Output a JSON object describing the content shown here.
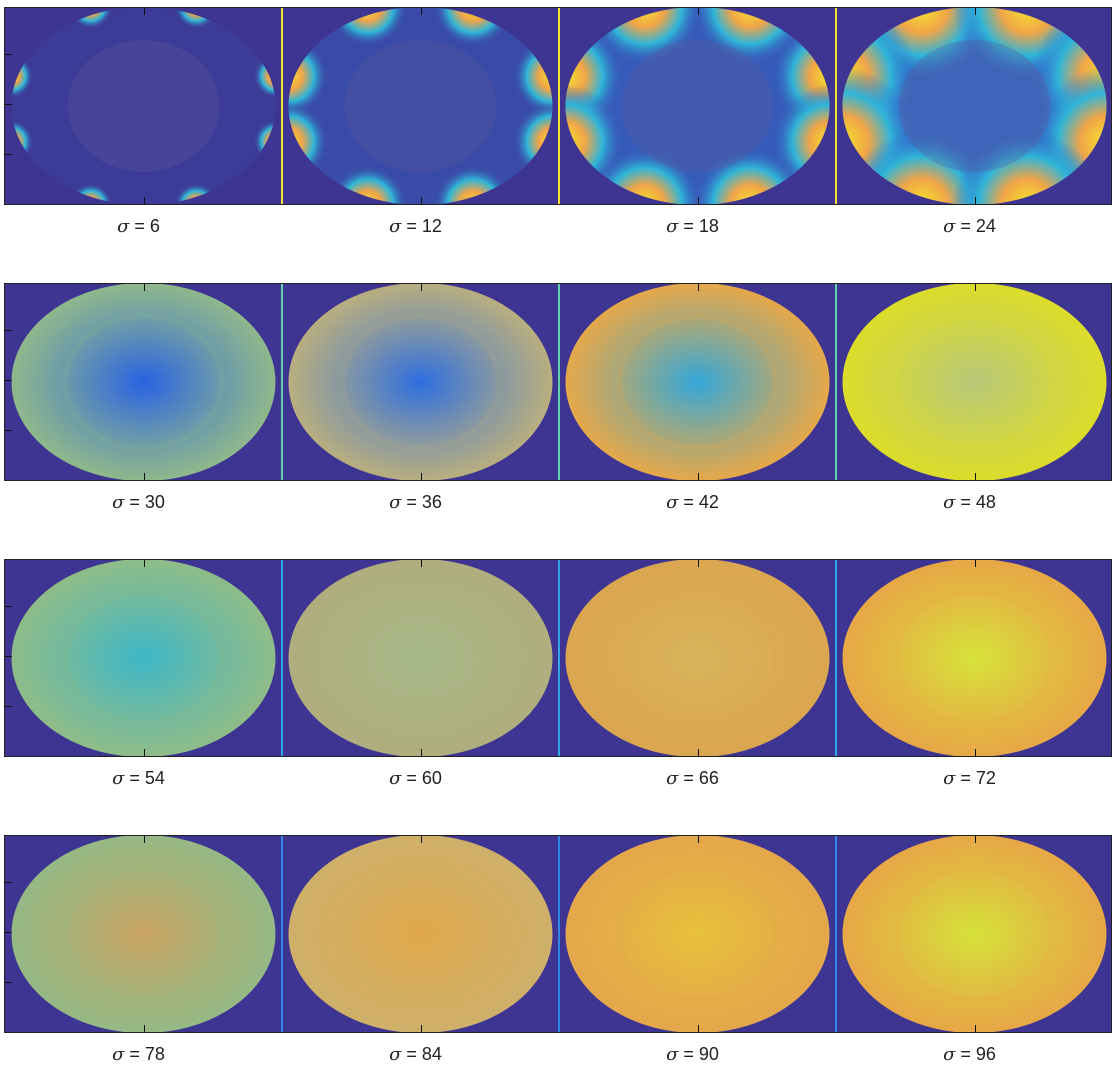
{
  "figure": {
    "symbol": "σ",
    "rows": [
      {
        "separator_color": "#f5e52b",
        "panels": [
          {
            "sigma": "6",
            "blob_radius": 10,
            "intensity": 1.0,
            "base": 0.05,
            "map": "blobs"
          },
          {
            "sigma": "12",
            "blob_radius": 18,
            "intensity": 1.0,
            "base": 0.18,
            "map": "blobs"
          },
          {
            "sigma": "18",
            "blob_radius": 26,
            "intensity": 1.0,
            "base": 0.32,
            "map": "blobs"
          },
          {
            "sigma": "24",
            "blob_radius": 34,
            "intensity": 1.0,
            "base": 0.45,
            "map": "blobs"
          }
        ]
      },
      {
        "separator_color": "#5fd0a8",
        "panels": [
          {
            "sigma": "30",
            "center": "#2a63e3",
            "edge": "#8fb88b",
            "map": "radial"
          },
          {
            "sigma": "36",
            "center": "#2e6fe0",
            "edge": "#b9ae7f",
            "map": "radial"
          },
          {
            "sigma": "42",
            "center": "#33a7d9",
            "edge": "#e6a84a",
            "map": "radial"
          },
          {
            "sigma": "48",
            "center": "#b8c87a",
            "edge": "#dcdc2a",
            "map": "radial"
          }
        ]
      },
      {
        "separator_color": "#2fa7e6",
        "panels": [
          {
            "sigma": "54",
            "center": "#3cb7c8",
            "edge": "#8fbc88",
            "map": "radial"
          },
          {
            "sigma": "60",
            "center": "#a7b988",
            "edge": "#b0ad7e",
            "map": "radial"
          },
          {
            "sigma": "66",
            "center": "#d8b45a",
            "edge": "#dba650",
            "map": "radial"
          },
          {
            "sigma": "72",
            "center": "#d7e33a",
            "edge": "#e7a746",
            "map": "radial"
          }
        ]
      },
      {
        "separator_color": "#2f86e6",
        "panels": [
          {
            "sigma": "78",
            "center": "#caa463",
            "edge": "#95b985",
            "map": "radial"
          },
          {
            "sigma": "84",
            "center": "#e0a84a",
            "edge": "#cfb06a",
            "map": "radial"
          },
          {
            "sigma": "90",
            "center": "#e7c13b",
            "edge": "#e4a74c",
            "map": "radial"
          },
          {
            "sigma": "96",
            "center": "#d6e23a",
            "edge": "#e7a746",
            "map": "radial"
          }
        ]
      }
    ]
  }
}
